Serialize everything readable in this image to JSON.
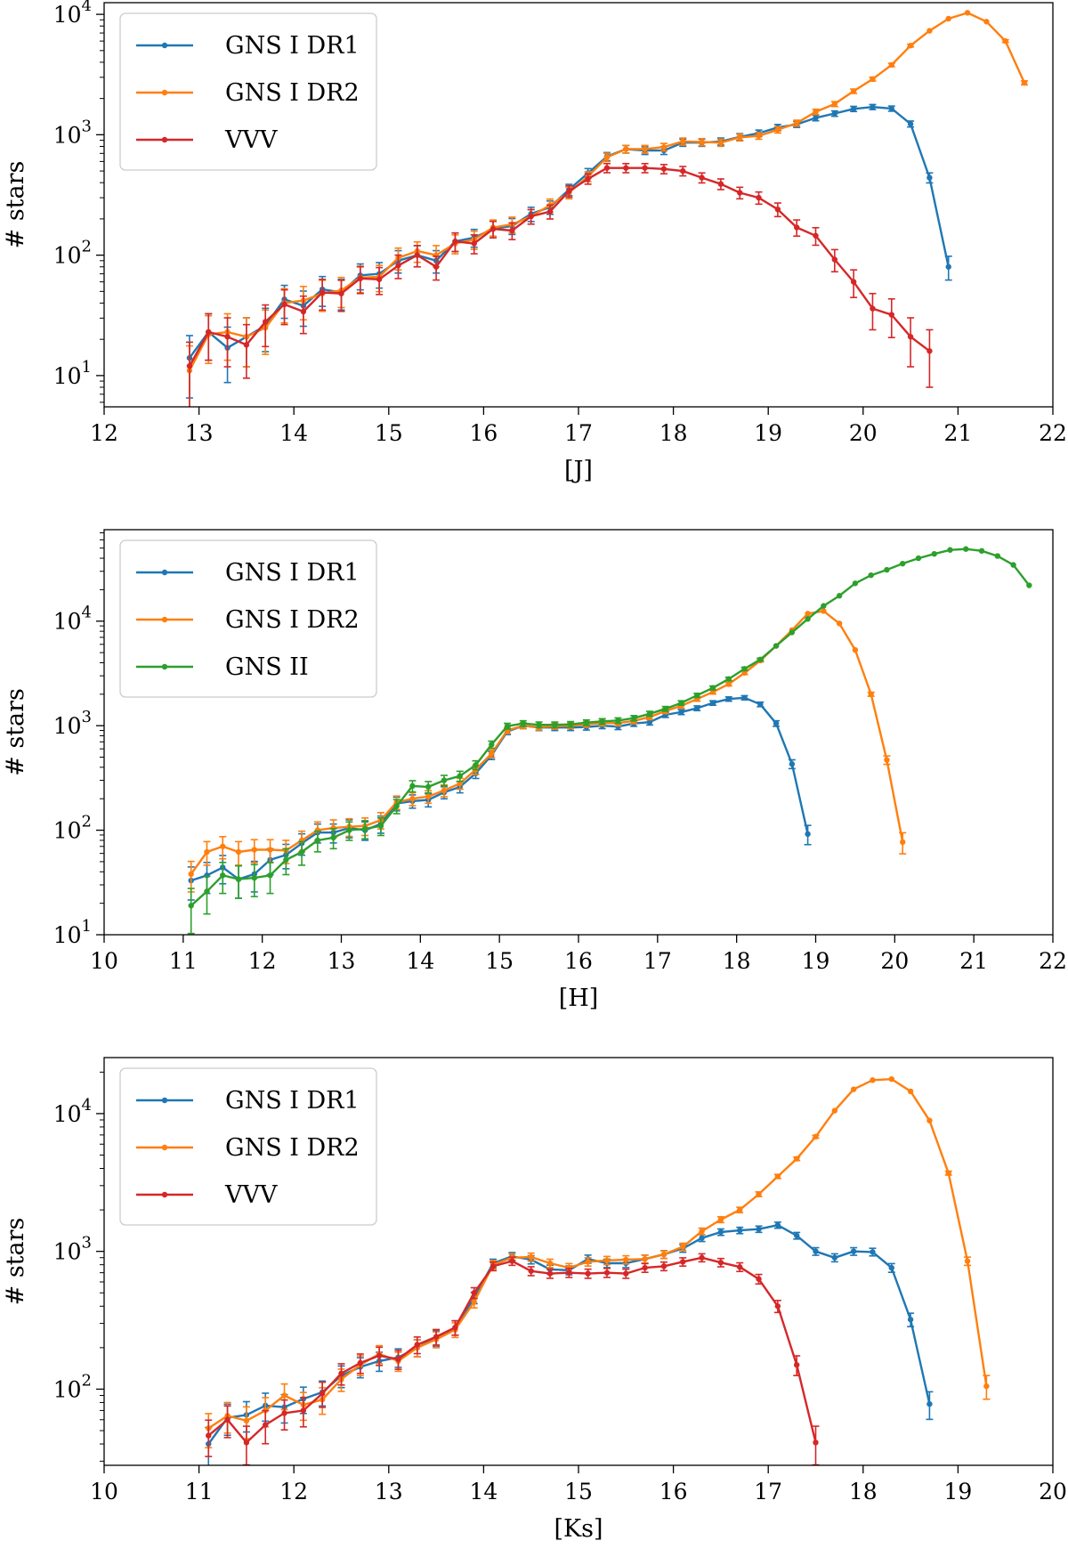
{
  "chart_data": [
    {
      "type": "line",
      "xlabel": "[J]",
      "ylabel": "# stars",
      "yscale": "log",
      "xlim": [
        12,
        22
      ],
      "ylim": [
        5.5,
        12500
      ],
      "xticks": [
        "12",
        "13",
        "14",
        "15",
        "16",
        "17",
        "18",
        "19",
        "20",
        "21",
        "22"
      ],
      "yticks": [
        {
          "base": "10",
          "exp": "1",
          "value": 10
        },
        {
          "base": "10",
          "exp": "2",
          "value": 100
        },
        {
          "base": "10",
          "exp": "3",
          "value": 1000
        },
        {
          "base": "10",
          "exp": "4",
          "value": 10000
        }
      ],
      "legend_position": "top-left",
      "series": [
        {
          "name": "GNS I DR1",
          "color": "#1f77b4",
          "x": [
            12.9,
            13.1,
            13.3,
            13.5,
            13.7,
            13.9,
            14.1,
            14.3,
            14.5,
            14.7,
            14.9,
            15.1,
            15.3,
            15.5,
            15.7,
            15.9,
            16.1,
            16.3,
            16.5,
            16.7,
            16.9,
            17.1,
            17.3,
            17.5,
            17.7,
            17.9,
            18.1,
            18.3,
            18.5,
            18.7,
            18.9,
            19.1,
            19.3,
            19.5,
            19.7,
            19.9,
            20.1,
            20.3,
            20.5,
            20.7,
            20.9
          ],
          "y": [
            14,
            23,
            17,
            21,
            26,
            43,
            38,
            52,
            49,
            68,
            70,
            90,
            100,
            90,
            130,
            140,
            165,
            175,
            220,
            250,
            350,
            480,
            660,
            760,
            740,
            740,
            860,
            860,
            880,
            960,
            1030,
            1150,
            1220,
            1380,
            1500,
            1640,
            1700,
            1650,
            1230,
            440,
            80
          ]
        },
        {
          "name": "GNS I DR2",
          "color": "#ff7f0e",
          "x": [
            12.9,
            13.1,
            13.3,
            13.5,
            13.7,
            13.9,
            14.1,
            14.3,
            14.5,
            14.7,
            14.9,
            15.1,
            15.3,
            15.5,
            15.7,
            15.9,
            16.1,
            16.3,
            16.5,
            16.7,
            16.9,
            17.1,
            17.3,
            17.5,
            17.7,
            17.9,
            18.1,
            18.3,
            18.5,
            18.7,
            18.9,
            19.1,
            19.3,
            19.5,
            19.7,
            19.9,
            20.1,
            20.3,
            20.5,
            20.7,
            20.9,
            21.1,
            21.3,
            21.5,
            21.7
          ],
          "y": [
            11,
            22,
            23,
            21,
            25,
            40,
            42,
            48,
            51,
            65,
            66,
            95,
            108,
            100,
            125,
            135,
            170,
            180,
            210,
            260,
            330,
            450,
            650,
            760,
            760,
            790,
            880,
            870,
            860,
            950,
            980,
            1100,
            1250,
            1550,
            1800,
            2300,
            2900,
            3800,
            5500,
            7300,
            9200,
            10300,
            8700,
            6000,
            2700
          ]
        },
        {
          "name": "VVV",
          "color": "#d62728",
          "x": [
            12.9,
            13.1,
            13.3,
            13.5,
            13.7,
            13.9,
            14.1,
            14.3,
            14.5,
            14.7,
            14.9,
            15.1,
            15.3,
            15.5,
            15.7,
            15.9,
            16.1,
            16.3,
            16.5,
            16.7,
            16.9,
            17.1,
            17.3,
            17.5,
            17.7,
            17.9,
            18.1,
            18.3,
            18.5,
            18.7,
            18.9,
            19.1,
            19.3,
            19.5,
            19.7,
            19.9,
            20.1,
            20.3,
            20.5,
            20.7
          ],
          "y": [
            12,
            23,
            21,
            18,
            28,
            39,
            34,
            49,
            48,
            64,
            63,
            82,
            100,
            80,
            130,
            125,
            165,
            160,
            210,
            230,
            340,
            430,
            530,
            530,
            530,
            520,
            500,
            440,
            390,
            330,
            300,
            240,
            170,
            145,
            92,
            60,
            36,
            32,
            21,
            16
          ]
        }
      ]
    },
    {
      "type": "line",
      "xlabel": "[H]",
      "ylabel": "# stars",
      "yscale": "log",
      "xlim": [
        10,
        22
      ],
      "ylim": [
        10,
        75000
      ],
      "xticks": [
        "10",
        "11",
        "12",
        "13",
        "14",
        "15",
        "16",
        "17",
        "18",
        "19",
        "20",
        "21",
        "22"
      ],
      "yticks": [
        {
          "base": "10",
          "exp": "1",
          "value": 10
        },
        {
          "base": "10",
          "exp": "2",
          "value": 100
        },
        {
          "base": "10",
          "exp": "3",
          "value": 1000
        },
        {
          "base": "10",
          "exp": "4",
          "value": 10000
        }
      ],
      "legend_position": "top-left",
      "series": [
        {
          "name": "GNS I DR1",
          "color": "#1f77b4",
          "x": [
            11.1,
            11.3,
            11.5,
            11.7,
            11.9,
            12.1,
            12.3,
            12.5,
            12.7,
            12.9,
            13.1,
            13.3,
            13.5,
            13.7,
            13.9,
            14.1,
            14.3,
            14.5,
            14.7,
            14.9,
            15.1,
            15.3,
            15.5,
            15.7,
            15.9,
            16.1,
            16.3,
            16.5,
            16.7,
            16.9,
            17.1,
            17.3,
            17.5,
            17.7,
            17.9,
            18.1,
            18.3,
            18.5,
            18.7,
            18.9
          ],
          "y": [
            33,
            37,
            44,
            34,
            38,
            52,
            58,
            75,
            95,
            95,
            105,
            100,
            115,
            180,
            190,
            195,
            230,
            260,
            350,
            520,
            880,
            1000,
            960,
            960,
            960,
            970,
            1000,
            980,
            1050,
            1080,
            1270,
            1350,
            1470,
            1650,
            1800,
            1850,
            1600,
            1050,
            430,
            92
          ]
        },
        {
          "name": "GNS I DR2",
          "color": "#ff7f0e",
          "x": [
            11.1,
            11.3,
            11.5,
            11.7,
            11.9,
            12.1,
            12.3,
            12.5,
            12.7,
            12.9,
            13.1,
            13.3,
            13.5,
            13.7,
            13.9,
            14.1,
            14.3,
            14.5,
            14.7,
            14.9,
            15.1,
            15.3,
            15.5,
            15.7,
            15.9,
            16.1,
            16.3,
            16.5,
            16.7,
            16.9,
            17.1,
            17.3,
            17.5,
            17.7,
            17.9,
            18.1,
            18.3,
            18.5,
            18.7,
            18.9,
            19.1,
            19.3,
            19.5,
            19.7,
            19.9,
            20.1
          ],
          "y": [
            38,
            62,
            70,
            62,
            65,
            65,
            64,
            80,
            100,
            105,
            108,
            110,
            125,
            185,
            200,
            210,
            240,
            280,
            380,
            540,
            900,
            1000,
            970,
            990,
            1000,
            1030,
            1060,
            1060,
            1110,
            1210,
            1380,
            1550,
            1800,
            2100,
            2500,
            3200,
            4200,
            5800,
            8200,
            11800,
            12500,
            9500,
            5300,
            2000,
            470,
            77
          ]
        },
        {
          "name": "GNS II",
          "color": "#2ca02c",
          "x": [
            11.1,
            11.3,
            11.5,
            11.7,
            11.9,
            12.1,
            12.3,
            12.5,
            12.7,
            12.9,
            13.1,
            13.3,
            13.5,
            13.7,
            13.9,
            14.1,
            14.3,
            14.5,
            14.7,
            14.9,
            15.1,
            15.3,
            15.5,
            15.7,
            15.9,
            16.1,
            16.3,
            16.5,
            16.7,
            16.9,
            17.1,
            17.3,
            17.5,
            17.7,
            17.9,
            18.1,
            18.3,
            18.5,
            18.7,
            18.9,
            19.1,
            19.3,
            19.5,
            19.7,
            19.9,
            20.1,
            20.3,
            20.5,
            20.7,
            20.9,
            21.1,
            21.3,
            21.5,
            21.7
          ],
          "y": [
            19,
            26,
            37,
            34,
            35,
            37,
            52,
            62,
            80,
            85,
            100,
            103,
            110,
            170,
            265,
            260,
            300,
            330,
            420,
            660,
            990,
            1050,
            1020,
            1020,
            1030,
            1070,
            1100,
            1120,
            1180,
            1300,
            1450,
            1650,
            1950,
            2300,
            2800,
            3500,
            4300,
            5800,
            7800,
            10500,
            14000,
            17500,
            23000,
            27500,
            31000,
            35500,
            40000,
            44000,
            48000,
            49000,
            47000,
            42000,
            34500,
            22000
          ]
        }
      ]
    },
    {
      "type": "line",
      "xlabel": "[Ks]",
      "ylabel": "# stars",
      "yscale": "log",
      "xlim": [
        10,
        20
      ],
      "ylim": [
        28,
        25500
      ],
      "xticks": [
        "10",
        "11",
        "12",
        "13",
        "14",
        "15",
        "16",
        "17",
        "18",
        "19",
        "20"
      ],
      "yticks": [
        {
          "base": "10",
          "exp": "2",
          "value": 100
        },
        {
          "base": "10",
          "exp": "3",
          "value": 1000
        },
        {
          "base": "10",
          "exp": "4",
          "value": 10000
        }
      ],
      "legend_position": "top-left",
      "series": [
        {
          "name": "GNS I DR1",
          "color": "#1f77b4",
          "x": [
            11.1,
            11.3,
            11.5,
            11.7,
            11.9,
            12.1,
            12.3,
            12.5,
            12.7,
            12.9,
            13.1,
            13.3,
            13.5,
            13.7,
            13.9,
            14.1,
            14.3,
            14.5,
            14.7,
            14.9,
            15.1,
            15.3,
            15.5,
            15.7,
            15.9,
            16.1,
            16.3,
            16.5,
            16.7,
            16.9,
            17.1,
            17.3,
            17.5,
            17.7,
            17.9,
            18.1,
            18.3,
            18.5,
            18.7
          ],
          "y": [
            40,
            62,
            65,
            76,
            74,
            85,
            95,
            125,
            145,
            160,
            170,
            200,
            235,
            280,
            460,
            820,
            920,
            870,
            740,
            730,
            880,
            820,
            820,
            880,
            950,
            1050,
            1250,
            1380,
            1420,
            1450,
            1550,
            1300,
            1000,
            900,
            1000,
            990,
            760,
            320,
            78
          ]
        },
        {
          "name": "GNS I DR2",
          "color": "#ff7f0e",
          "x": [
            11.1,
            11.3,
            11.5,
            11.7,
            11.9,
            12.1,
            12.3,
            12.5,
            12.7,
            12.9,
            13.1,
            13.3,
            13.5,
            13.7,
            13.9,
            14.1,
            14.3,
            14.5,
            14.7,
            14.9,
            15.1,
            15.3,
            15.5,
            15.7,
            15.9,
            16.1,
            16.3,
            16.5,
            16.7,
            16.9,
            17.1,
            17.3,
            17.5,
            17.7,
            17.9,
            18.1,
            18.3,
            18.5,
            18.7,
            18.9,
            19.1,
            19.3
          ],
          "y": [
            52,
            64,
            59,
            70,
            90,
            77,
            84,
            118,
            150,
            180,
            160,
            200,
            230,
            270,
            430,
            800,
            900,
            910,
            820,
            760,
            840,
            860,
            870,
            880,
            950,
            1080,
            1400,
            1700,
            2000,
            2600,
            3500,
            4700,
            6800,
            10500,
            15000,
            17500,
            17800,
            14500,
            8900,
            3700,
            850,
            105
          ]
        },
        {
          "name": "VVV",
          "color": "#d62728",
          "x": [
            11.1,
            11.3,
            11.5,
            11.7,
            11.9,
            12.1,
            12.3,
            12.5,
            12.7,
            12.9,
            13.1,
            13.3,
            13.5,
            13.7,
            13.9,
            14.1,
            14.3,
            14.5,
            14.7,
            14.9,
            15.1,
            15.3,
            15.5,
            15.7,
            15.9,
            16.1,
            16.3,
            16.5,
            16.7,
            16.9,
            17.1,
            17.3,
            17.5
          ],
          "y": [
            46,
            60,
            41,
            55,
            67,
            70,
            93,
            130,
            155,
            175,
            165,
            210,
            240,
            280,
            500,
            780,
            850,
            720,
            690,
            700,
            690,
            700,
            690,
            760,
            780,
            840,
            900,
            830,
            770,
            630,
            400,
            150,
            41
          ]
        }
      ]
    }
  ]
}
